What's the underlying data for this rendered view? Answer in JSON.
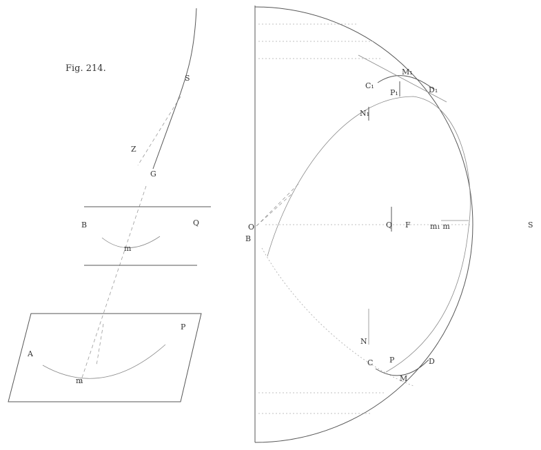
{
  "title": "Fig. 214.",
  "labels": {
    "S_top": "S",
    "Z": "Z",
    "G": "G",
    "B_mid": "B",
    "Q_mid": "Q",
    "m_mid": "m",
    "A": "A",
    "P": "P",
    "m_low": "m",
    "O": "O",
    "B_center": "B",
    "C1": "C₁",
    "M1": "M₁",
    "D1": "D₁",
    "P1": "P₁",
    "N1": "N₁",
    "Q_center": "Q",
    "F": "F",
    "mtext": "m₁ m",
    "S_right": "S",
    "N": "N",
    "C": "C",
    "P_low": "P",
    "M": "M",
    "D": "D"
  }
}
